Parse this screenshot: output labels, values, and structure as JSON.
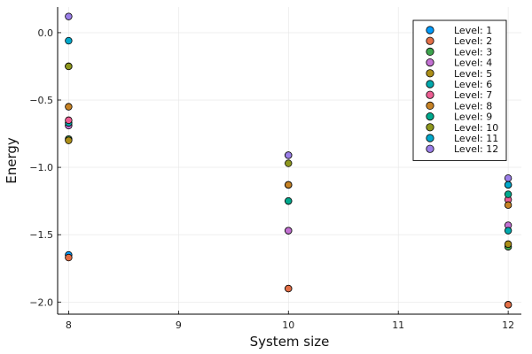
{
  "chart_data": {
    "type": "scatter",
    "title": "",
    "xlabel": "System size",
    "ylabel": "Energy",
    "xlim": [
      7.9,
      12.12
    ],
    "ylim": [
      -2.09,
      0.19
    ],
    "xticks": [
      8,
      9,
      10,
      11,
      12
    ],
    "xtick_labels": [
      "8",
      "9",
      "10",
      "11",
      "12"
    ],
    "yticks": [
      0.0,
      -0.5,
      -1.0,
      -1.5,
      -2.0
    ],
    "ytick_labels": [
      "0.0",
      "−0.5",
      "−1.0",
      "−1.5",
      "−2.0"
    ],
    "grid": true,
    "legend_position": "top-right",
    "series": [
      {
        "name": "Level: 1",
        "color": "#009AFA",
        "points": [
          [
            8,
            -1.65
          ],
          [
            10,
            -1.9
          ],
          [
            12,
            -2.02
          ]
        ]
      },
      {
        "name": "Level: 2",
        "color": "#E36F47",
        "points": [
          [
            8,
            -1.67
          ],
          [
            10,
            -1.9
          ],
          [
            12,
            -2.02
          ]
        ]
      },
      {
        "name": "Level: 3",
        "color": "#3EA44E",
        "points": [
          [
            8,
            -0.79
          ],
          [
            10,
            -1.47
          ],
          [
            12,
            -1.59
          ]
        ]
      },
      {
        "name": "Level: 4",
        "color": "#C371D2",
        "points": [
          [
            8,
            -0.69
          ],
          [
            10,
            -1.47
          ],
          [
            12,
            -1.43
          ]
        ]
      },
      {
        "name": "Level: 5",
        "color": "#AC8E18",
        "points": [
          [
            8,
            -0.8
          ],
          [
            10,
            -1.13
          ],
          [
            12,
            -1.57
          ]
        ]
      },
      {
        "name": "Level: 6",
        "color": "#00A9AD",
        "points": [
          [
            8,
            -0.67
          ],
          [
            10,
            -1.25
          ],
          [
            12,
            -1.47
          ]
        ]
      },
      {
        "name": "Level: 7",
        "color": "#ED5E93",
        "points": [
          [
            8,
            -0.65
          ],
          [
            10,
            -1.13
          ],
          [
            12,
            -1.24
          ]
        ]
      },
      {
        "name": "Level: 8",
        "color": "#C68225",
        "points": [
          [
            8,
            -0.55
          ],
          [
            10,
            -1.13
          ],
          [
            12,
            -1.28
          ]
        ]
      },
      {
        "name": "Level: 9",
        "color": "#00A98D",
        "points": [
          [
            8,
            -0.25
          ],
          [
            10,
            -1.25
          ],
          [
            12,
            -1.2
          ]
        ]
      },
      {
        "name": "Level: 10",
        "color": "#8E971E",
        "points": [
          [
            8,
            -0.25
          ],
          [
            10,
            -0.97
          ],
          [
            12,
            -1.13
          ]
        ]
      },
      {
        "name": "Level: 11",
        "color": "#00A8CB",
        "points": [
          [
            8,
            -0.06
          ],
          [
            10,
            -0.91
          ],
          [
            12,
            -1.13
          ]
        ]
      },
      {
        "name": "Level: 12",
        "color": "#9B7FE9",
        "points": [
          [
            8,
            0.12
          ],
          [
            10,
            -0.91
          ],
          [
            12,
            -1.08
          ]
        ]
      }
    ]
  }
}
